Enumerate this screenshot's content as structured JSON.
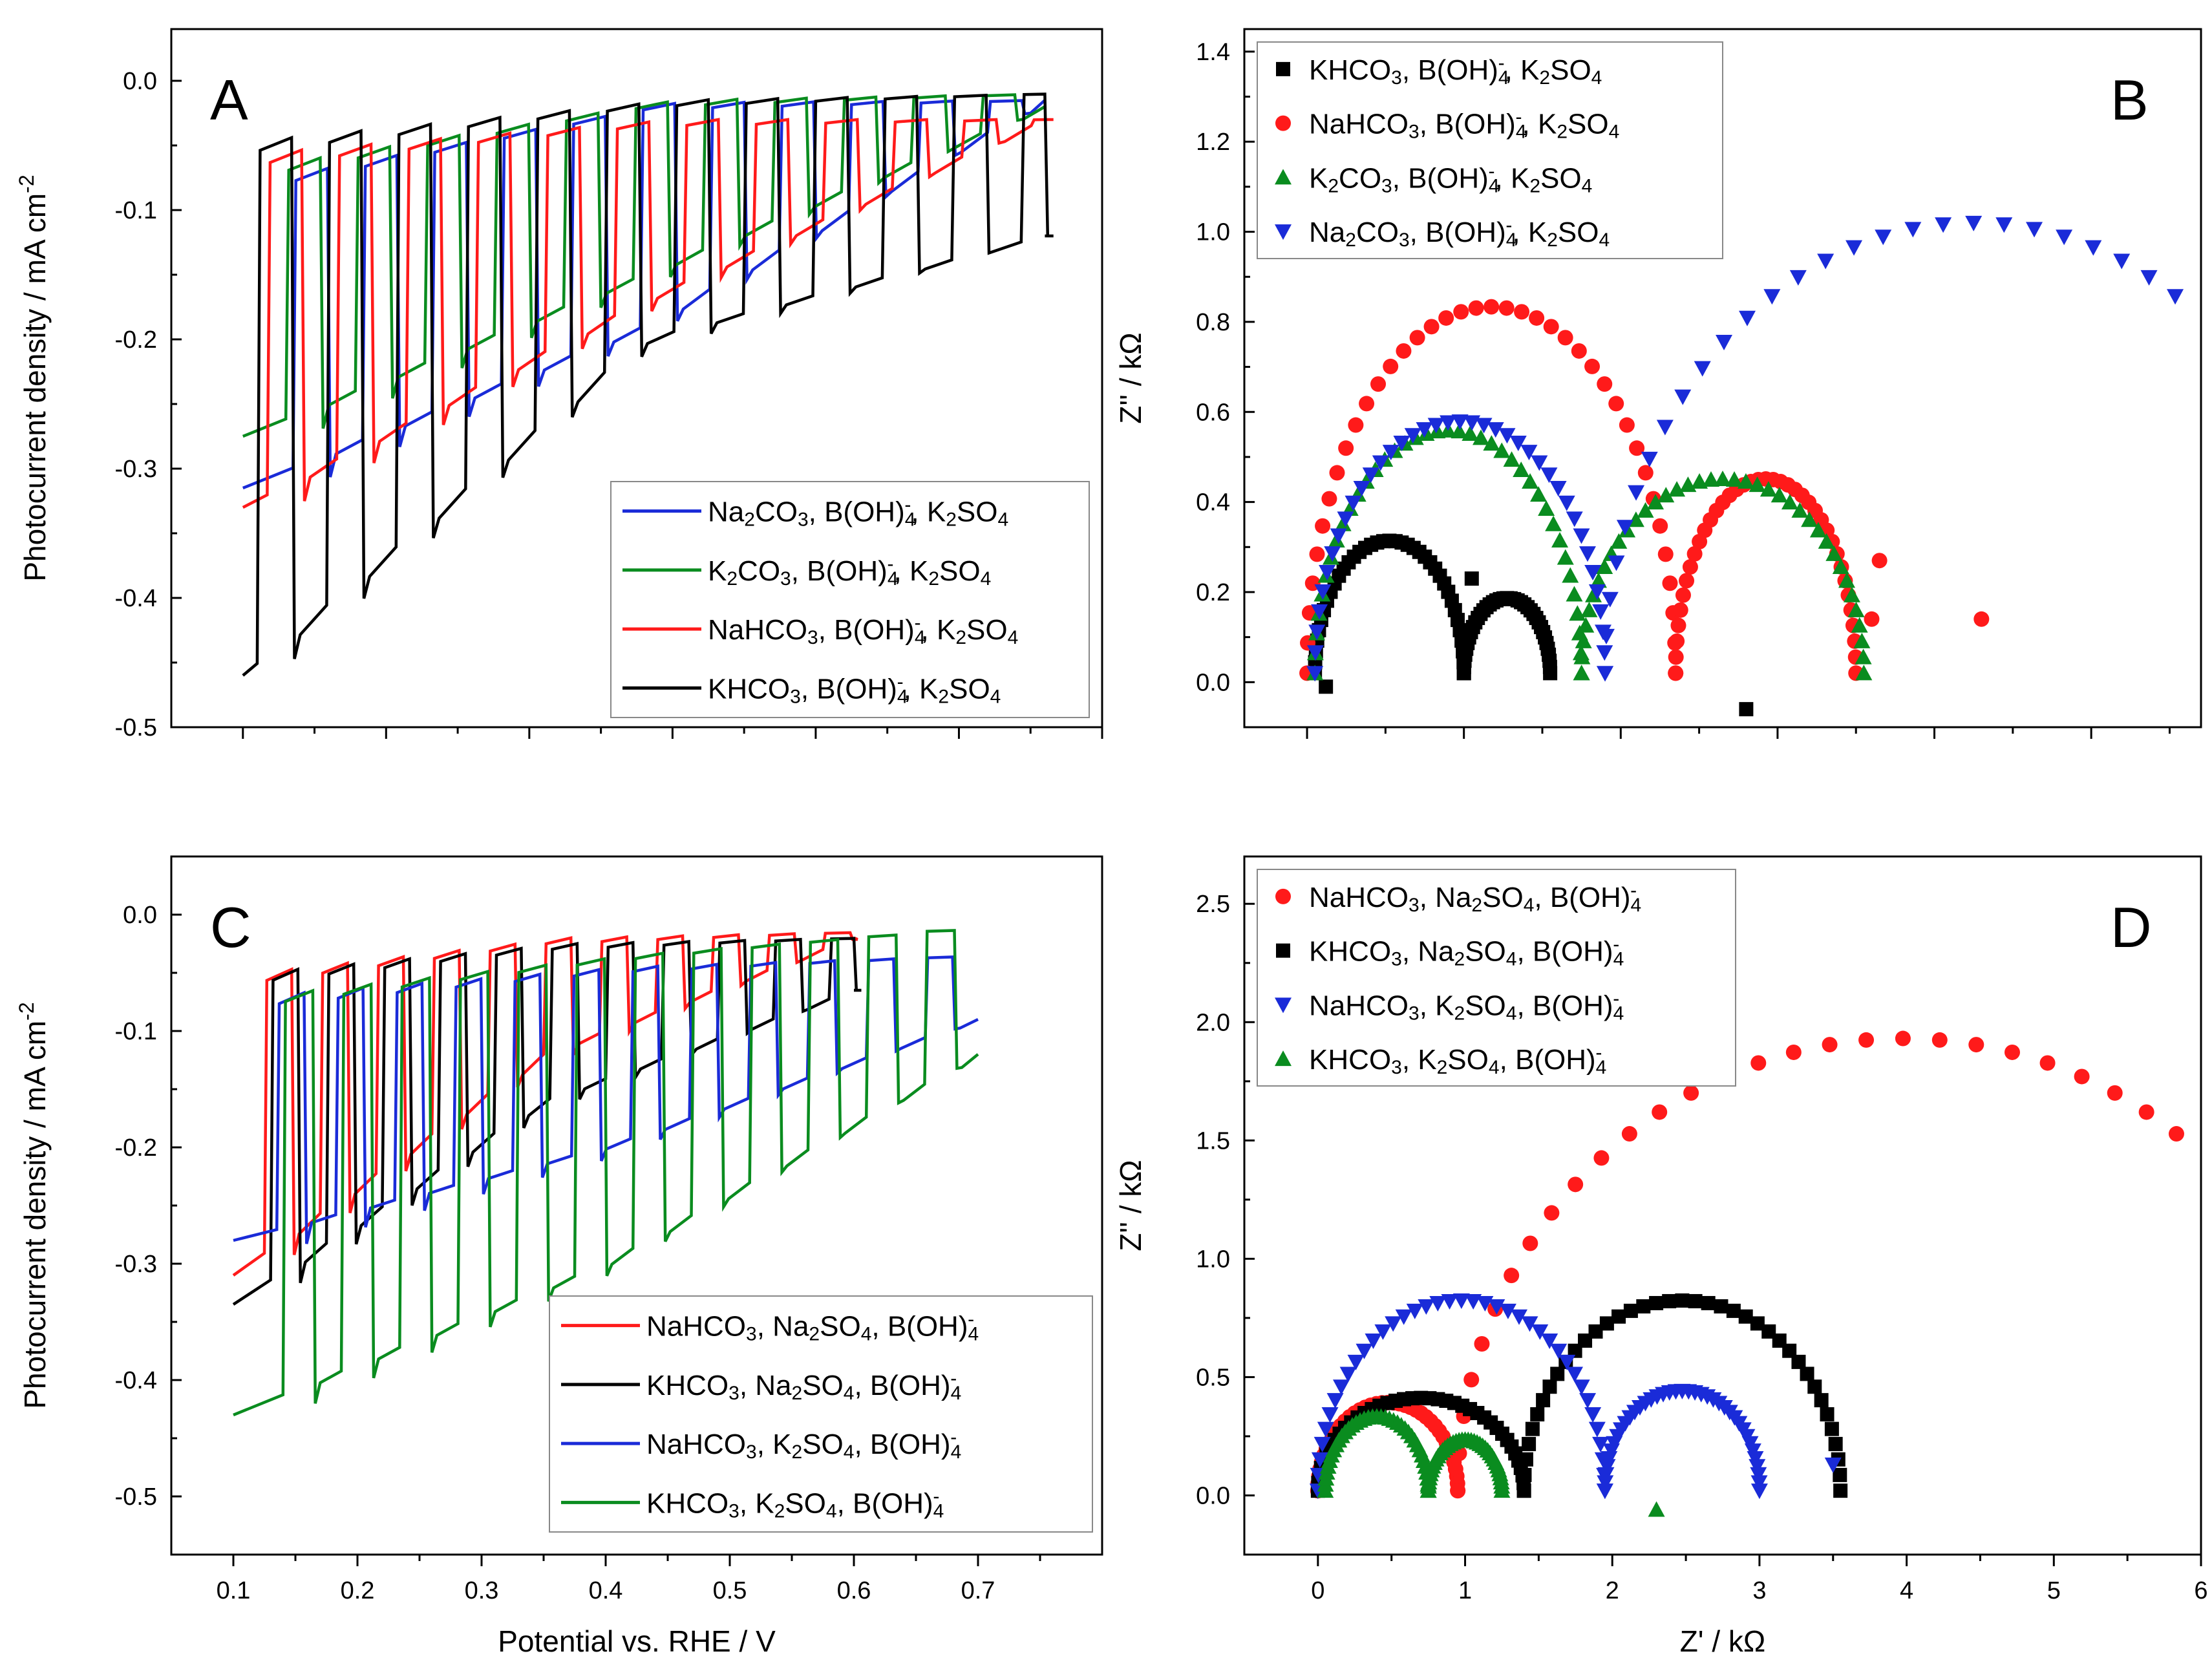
{
  "figure": {
    "panels": [
      "A",
      "B",
      "C",
      "D"
    ],
    "series_colors": {
      "black": "#000000",
      "red": "#ff1a1a",
      "green": "#0a8c1f",
      "blue": "#1a2bd8"
    }
  },
  "chart_data": [
    {
      "id": "A",
      "type": "line",
      "panel_label": "A",
      "ylabel": "Photocurrent density / mA cm",
      "ylabel_sup": "-2",
      "xlabel": "",
      "xlim": [
        0.05,
        0.7
      ],
      "ylim": [
        -0.5,
        0.04
      ],
      "yticks": [
        0.0,
        -0.1,
        -0.2,
        -0.3,
        -0.4,
        -0.5
      ],
      "ytick_labels": [
        "0.0",
        "-0.1",
        "-0.2",
        "-0.3",
        "-0.4",
        "-0.5"
      ],
      "xticks": [
        0.1,
        0.2,
        0.3,
        0.4,
        0.5,
        0.6,
        0.7
      ],
      "legend_position": "bottom-right",
      "series": [
        {
          "name": "Na2CO3, B(OH)4-, K2SO4",
          "legend": [
            [
              "Na",
              "2",
              "CO",
              "3",
              ", B(OH)",
              "4",
              "-",
              ", K",
              "2",
              "SO",
              "4"
            ]
          ],
          "color": "blue",
          "dark": [
            -0.315,
            -0.19,
            -0.015
          ],
          "light": [
            -0.085,
            -0.022,
            -0.015
          ],
          "onset": 0.1,
          "end": 0.66,
          "first_pulse": 0.135,
          "period": 0.0485,
          "width": 0.024
        },
        {
          "name": "K2CO3, B(OH)4-, K2SO4",
          "legend": [
            [
              "K",
              "2",
              "CO",
              "3",
              ", B(OH)",
              "4",
              "-",
              ", K",
              "2",
              "SO",
              "4"
            ]
          ],
          "color": "green",
          "dark": [
            -0.275,
            -0.15,
            -0.02
          ],
          "light": [
            -0.075,
            -0.02,
            -0.01
          ],
          "onset": 0.1,
          "end": 0.66,
          "first_pulse": 0.13,
          "period": 0.0485,
          "width": 0.024
        },
        {
          "name": "NaHCO3, B(OH)4-, K2SO4",
          "legend": [
            [
              "NaHCO",
              "3",
              ", B(OH)",
              "4",
              "-",
              ", K",
              "2",
              "SO",
              "4"
            ]
          ],
          "color": "red",
          "dark": [
            -0.33,
            -0.17,
            -0.03
          ],
          "light": [
            -0.065,
            -0.035,
            -0.03
          ],
          "onset": 0.1,
          "end": 0.66,
          "first_pulse": 0.117,
          "period": 0.0485,
          "width": 0.024
        },
        {
          "name": "KHCO3, B(OH)4-, K2SO4",
          "legend": [
            [
              "KHCO",
              "3",
              ", B(OH)",
              "4",
              "-",
              ", K",
              "2",
              "SO",
              "4"
            ]
          ],
          "color": "black",
          "dark": [
            -0.46,
            -0.2,
            -0.12
          ],
          "light": [
            -0.055,
            -0.02,
            -0.01
          ],
          "onset": 0.1,
          "end": 0.66,
          "first_pulse": 0.11,
          "period": 0.0485,
          "width": 0.024
        }
      ]
    },
    {
      "id": "B",
      "type": "scatter",
      "panel_label": "B",
      "ylabel": "Z'' / kΩ",
      "xlabel": "",
      "xlim": [
        -0.4,
        5.7
      ],
      "ylim": [
        -0.1,
        1.45
      ],
      "yticks": [
        0.0,
        0.2,
        0.4,
        0.6,
        0.8,
        1.0,
        1.2,
        1.4
      ],
      "ytick_labels": [
        "0.0",
        "0.2",
        "0.4",
        "0.6",
        "0.8",
        "1.0",
        "1.2",
        "1.4"
      ],
      "xticks": [
        0,
        1,
        2,
        3,
        4,
        5
      ],
      "legend_position": "top-left",
      "series": [
        {
          "name": "KHCO3, B(OH)4-, K2SO4",
          "legend": [
            [
              "KHCO",
              "3",
              ", B(OH)",
              "4",
              "-",
              ", K",
              "2",
              "SO",
              "4"
            ]
          ],
          "color": "black",
          "marker": "square",
          "arcs": [
            {
              "x0": 0.05,
              "x1": 1.0,
              "h": 0.3
            },
            {
              "x0": 1.0,
              "x1": 1.55,
              "h": 0.17
            }
          ],
          "extra": [
            [
              0.12,
              -0.01
            ],
            [
              1.05,
              0.23
            ],
            [
              2.8,
              -0.06
            ]
          ]
        },
        {
          "name": "NaHCO3, B(OH)4-, K2SO4",
          "legend": [
            [
              "NaHCO",
              "3",
              ", B(OH)",
              "4",
              "-",
              ", K",
              "2",
              "SO",
              "4"
            ]
          ],
          "color": "red",
          "marker": "circle",
          "arcs": [
            {
              "x0": 0.0,
              "x1": 2.35,
              "h": 0.83
            },
            {
              "x0": 2.35,
              "x1": 3.5,
              "h": 0.44
            }
          ],
          "extra": [
            [
              4.3,
              0.14
            ],
            [
              3.6,
              0.14
            ],
            [
              3.65,
              0.27
            ]
          ]
        },
        {
          "name": "K2CO3, B(OH)4-, K2SO4",
          "legend": [
            [
              "K",
              "2",
              "CO",
              "3",
              ", B(OH)",
              "4",
              "-",
              ", K",
              "2",
              "SO",
              "4"
            ]
          ],
          "color": "green",
          "marker": "triangle-up",
          "arcs": [
            {
              "x0": 0.05,
              "x1": 1.75,
              "h": 0.55
            },
            {
              "x0": 1.75,
              "x1": 3.55,
              "h": 0.44
            }
          ],
          "extra": []
        },
        {
          "name": "Na2CO3, B(OH)4-, K2SO4",
          "legend": [
            [
              "Na",
              "2",
              "CO",
              "3",
              ", B(OH)",
              "4",
              "-",
              ", K",
              "2",
              "SO",
              "4"
            ]
          ],
          "color": "blue",
          "marker": "triangle-down",
          "arcs": [
            {
              "x0": 0.05,
              "x1": 1.9,
              "h": 0.57
            },
            {
              "x0": 1.9,
              "x1": 6.6,
              "h": 1.02
            }
          ],
          "extra": []
        }
      ]
    },
    {
      "id": "C",
      "type": "line",
      "panel_label": "C",
      "ylabel": "Photocurrent density / mA cm",
      "ylabel_sup": "-2",
      "xlabel": "Potential vs. RHE / V",
      "xlim": [
        0.05,
        0.8
      ],
      "ylim": [
        -0.55,
        0.05
      ],
      "yticks": [
        0.0,
        -0.1,
        -0.2,
        -0.3,
        -0.4,
        -0.5
      ],
      "ytick_labels": [
        "0.0",
        "-0.1",
        "-0.2",
        "-0.3",
        "-0.4",
        "-0.5"
      ],
      "xticks": [
        0.1,
        0.2,
        0.3,
        0.4,
        0.5,
        0.6,
        0.7
      ],
      "xtick_labels": [
        "0.1",
        "0.2",
        "0.3",
        "0.4",
        "0.5",
        "0.6",
        "0.7"
      ],
      "legend_position": "bottom-right",
      "series": [
        {
          "name": "NaHCO3, Na2SO4, B(OH)4-",
          "legend": [
            [
              "NaHCO",
              "3",
              ", Na",
              "2",
              "SO",
              "4",
              ", B(OH)",
              "4",
              "-"
            ]
          ],
          "color": "red",
          "dark": [
            -0.31,
            -0.12,
            -0.02
          ],
          "light": [
            -0.06,
            -0.025,
            -0.015
          ],
          "onset": 0.1,
          "end": 0.6,
          "first_pulse": 0.125,
          "period": 0.045,
          "width": 0.022
        },
        {
          "name": "KHCO3, Na2SO4, B(OH)4-",
          "legend": [
            [
              "KHCO",
              "3",
              ", Na",
              "2",
              "SO",
              "4",
              ", B(OH)",
              "4",
              "-"
            ]
          ],
          "color": "black",
          "dark": [
            -0.335,
            -0.16,
            -0.065
          ],
          "light": [
            -0.06,
            -0.03,
            -0.02
          ],
          "onset": 0.1,
          "end": 0.6,
          "first_pulse": 0.13,
          "period": 0.045,
          "width": 0.022
        },
        {
          "name": "NaHCO3, K2SO4, B(OH)4-",
          "legend": [
            [
              "NaHCO",
              "3",
              ", K",
              "2",
              "SO",
              "4",
              ", B(OH)",
              "4",
              "-"
            ]
          ],
          "color": "blue",
          "dark": [
            -0.28,
            -0.2,
            -0.09
          ],
          "light": [
            -0.08,
            -0.05,
            -0.035
          ],
          "onset": 0.1,
          "end": 0.7,
          "first_pulse": 0.135,
          "period": 0.0475,
          "width": 0.022
        },
        {
          "name": "KHCO3, K2SO4, B(OH)4-",
          "legend": [
            [
              "KHCO",
              "3",
              ", K",
              "2",
              "SO",
              "4",
              ", B(OH)",
              "4",
              "-"
            ]
          ],
          "color": "green",
          "dark": [
            -0.43,
            -0.3,
            -0.12
          ],
          "light": [
            -0.08,
            -0.04,
            -0.01
          ],
          "onset": 0.1,
          "end": 0.7,
          "first_pulse": 0.14,
          "period": 0.047,
          "width": 0.024
        }
      ]
    },
    {
      "id": "D",
      "type": "scatter",
      "panel_label": "D",
      "ylabel": "Z'' / kΩ",
      "xlabel": "Z' / kΩ",
      "xlim": [
        -0.5,
        6.0
      ],
      "ylim": [
        -0.25,
        2.7
      ],
      "yticks": [
        0.0,
        0.5,
        1.0,
        1.5,
        2.0,
        2.5
      ],
      "ytick_labels": [
        "0.0",
        "0.5",
        "1.0",
        "1.5",
        "2.0",
        "2.5"
      ],
      "xticks": [
        0,
        1,
        2,
        3,
        4,
        5,
        6
      ],
      "xtick_labels": [
        "0",
        "1",
        "2",
        "3",
        "4",
        "5",
        "6"
      ],
      "legend_position": "top-left",
      "series": [
        {
          "name": "NaHCO3, Na2SO4, B(OH)4-",
          "legend": [
            [
              "NaHCO",
              "3",
              ", Na",
              "2",
              "SO",
              "4",
              ", B(OH)",
              "4",
              "-"
            ]
          ],
          "color": "red",
          "marker": "circle",
          "arcs": [
            {
              "x0": 0.0,
              "x1": 0.95,
              "h": 0.38
            },
            {
              "x0": 0.95,
              "x1": 7.0,
              "h": 1.95
            }
          ],
          "extra": []
        },
        {
          "name": "KHCO3, Na2SO4, B(OH)4-",
          "legend": [
            [
              "KHCO",
              "3",
              ", Na",
              "2",
              "SO",
              "4",
              ", B(OH)",
              "4",
              "-"
            ]
          ],
          "color": "black",
          "marker": "square",
          "arcs": [
            {
              "x0": 0.0,
              "x1": 1.4,
              "h": 0.4
            },
            {
              "x0": 1.4,
              "x1": 3.55,
              "h": 0.82
            }
          ],
          "extra": []
        },
        {
          "name": "NaHCO3, K2SO4, B(OH)4-",
          "legend": [
            [
              "NaHCO",
              "3",
              ", K",
              "2",
              "SO",
              "4",
              ", B(OH)",
              "4",
              "-"
            ]
          ],
          "color": "blue",
          "marker": "triangle-down",
          "arcs": [
            {
              "x0": 0.0,
              "x1": 1.95,
              "h": 0.82
            },
            {
              "x0": 1.95,
              "x1": 3.0,
              "h": 0.43
            }
          ],
          "extra": [
            [
              3.5,
              0.13
            ]
          ]
        },
        {
          "name": "KHCO3, K2SO4, B(OH)4-",
          "legend": [
            [
              "KHCO",
              "3",
              ", K",
              "2",
              "SO",
              "4",
              ", B(OH)",
              "4",
              "-"
            ]
          ],
          "color": "green",
          "marker": "triangle-up",
          "arcs": [
            {
              "x0": 0.05,
              "x1": 0.75,
              "h": 0.32
            },
            {
              "x0": 0.75,
              "x1": 1.25,
              "h": 0.22
            }
          ],
          "extra": [
            [
              2.3,
              -0.06
            ]
          ]
        }
      ]
    }
  ]
}
